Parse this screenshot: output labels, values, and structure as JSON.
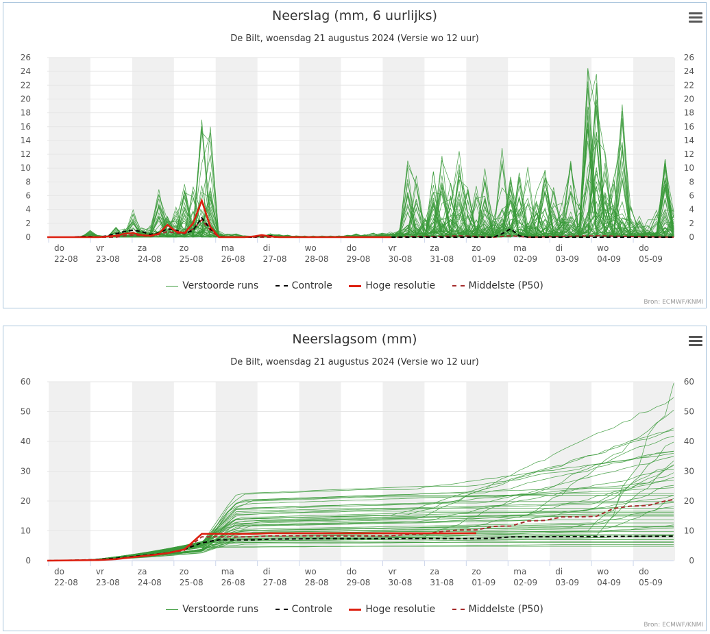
{
  "colors": {
    "ensemble": "#3a9a3a",
    "control": "#000000",
    "high_res": "#dd1f0f",
    "median": "#a52a2a",
    "band": "#f0f0f0",
    "grid": "#e6e6e6"
  },
  "legend": [
    {
      "label": "Verstoorde runs",
      "style": "ensemble"
    },
    {
      "label": "Controle",
      "style": "control"
    },
    {
      "label": "Hoge resolutie",
      "style": "high_res"
    },
    {
      "label": "Middelste (P50)",
      "style": "median"
    }
  ],
  "source": "Bron: ECMWF/KNMI",
  "chart_data": [
    {
      "type": "line",
      "title": "Neerslag (mm, 6 uurlijks)",
      "subtitle": "De Bilt, woensdag 21 augustus 2024 (Versie wo 12 uur)",
      "x_day_labels": [
        [
          "do",
          "22-08"
        ],
        [
          "vr",
          "23-08"
        ],
        [
          "za",
          "24-08"
        ],
        [
          "zo",
          "25-08"
        ],
        [
          "ma",
          "26-08"
        ],
        [
          "di",
          "27-08"
        ],
        [
          "wo",
          "28-08"
        ],
        [
          "do",
          "29-08"
        ],
        [
          "vr",
          "30-08"
        ],
        [
          "za",
          "31-08"
        ],
        [
          "zo",
          "01-09"
        ],
        [
          "ma",
          "02-09"
        ],
        [
          "di",
          "03-09"
        ],
        [
          "wo",
          "04-09"
        ],
        [
          "do",
          "05-09"
        ]
      ],
      "ylim": [
        0,
        26
      ],
      "yticks": [
        0,
        2,
        4,
        6,
        8,
        10,
        12,
        14,
        16,
        18,
        20,
        22,
        24,
        26
      ],
      "grid": true,
      "ensemble": {
        "name": "Verstoorde runs",
        "members": 50,
        "peak_envelope": [
          [
            0.0,
            0
          ],
          [
            0.25,
            0
          ],
          [
            0.5,
            0
          ],
          [
            0.75,
            0
          ],
          [
            1.0,
            0.2
          ],
          [
            1.25,
            1.0
          ],
          [
            1.5,
            0.3
          ],
          [
            1.75,
            0.2
          ],
          [
            2.0,
            1.5
          ],
          [
            2.25,
            1.2
          ],
          [
            2.5,
            4.0
          ],
          [
            2.75,
            1.5
          ],
          [
            3.0,
            2.0
          ],
          [
            3.25,
            7.0
          ],
          [
            3.5,
            3.0
          ],
          [
            3.75,
            4.5
          ],
          [
            4.0,
            8.0
          ],
          [
            4.25,
            7.5
          ],
          [
            4.5,
            17.0
          ],
          [
            4.75,
            16.0
          ],
          [
            5.0,
            1.0
          ],
          [
            5.25,
            0.5
          ],
          [
            5.5,
            0.5
          ],
          [
            5.75,
            0.2
          ],
          [
            6.0,
            0.2
          ],
          [
            6.25,
            0.3
          ],
          [
            6.5,
            0.5
          ],
          [
            6.75,
            0.4
          ],
          [
            7.0,
            0.3
          ],
          [
            7.25,
            0.2
          ],
          [
            7.5,
            0.2
          ],
          [
            7.75,
            0.2
          ],
          [
            8.0,
            0.2
          ],
          [
            8.25,
            0.2
          ],
          [
            8.5,
            0.2
          ],
          [
            8.75,
            0.3
          ],
          [
            9.0,
            0.5
          ],
          [
            9.25,
            0.4
          ],
          [
            9.5,
            0.6
          ],
          [
            9.75,
            0.8
          ],
          [
            10.0,
            0.8
          ],
          [
            10.25,
            1.0
          ],
          [
            10.5,
            12.2
          ],
          [
            10.75,
            9.0
          ],
          [
            11.0,
            3.0
          ],
          [
            11.25,
            9.5
          ],
          [
            11.5,
            12.5
          ],
          [
            11.75,
            8.0
          ],
          [
            12.0,
            12.5
          ],
          [
            12.25,
            7.5
          ],
          [
            12.5,
            9.5
          ],
          [
            12.75,
            10.5
          ],
          [
            13.0,
            3.0
          ],
          [
            13.25,
            13.2
          ],
          [
            13.5,
            9.0
          ],
          [
            13.75,
            9.5
          ],
          [
            14.0,
            10.2
          ],
          [
            14.25,
            6.5
          ],
          [
            14.5,
            10.5
          ],
          [
            14.75,
            7.5
          ],
          [
            15.0,
            6.5
          ],
          [
            15.25,
            12.2
          ],
          [
            15.5,
            5.0
          ],
          [
            15.75,
            24.5
          ],
          [
            16.0,
            23.6
          ],
          [
            16.25,
            12.8
          ],
          [
            16.5,
            8.5
          ],
          [
            16.75,
            19.2
          ],
          [
            17.0,
            6.0
          ],
          [
            17.25,
            4.0
          ],
          [
            17.5,
            3.5
          ],
          [
            17.75,
            4.5
          ],
          [
            18.0,
            11.4
          ],
          [
            18.25,
            4.0
          ]
        ]
      },
      "control": {
        "name": "Controle",
        "points": [
          [
            0,
            0
          ],
          [
            0.75,
            0
          ],
          [
            1.0,
            0.1
          ],
          [
            1.25,
            0.1
          ],
          [
            1.5,
            0.0
          ],
          [
            1.75,
            0.2
          ],
          [
            2.0,
            0.5
          ],
          [
            2.25,
            0.8
          ],
          [
            2.5,
            1.0
          ],
          [
            2.75,
            0.8
          ],
          [
            3.0,
            0.4
          ],
          [
            3.25,
            0.6
          ],
          [
            3.5,
            1.2
          ],
          [
            3.75,
            1.0
          ],
          [
            4.0,
            0.5
          ],
          [
            4.25,
            1.0
          ],
          [
            4.5,
            2.8
          ],
          [
            4.75,
            1.2
          ],
          [
            5.0,
            0.1
          ],
          [
            5.25,
            0.0
          ],
          [
            6.0,
            0.0
          ],
          [
            6.25,
            0.2
          ],
          [
            6.5,
            0.2
          ],
          [
            6.75,
            0.0
          ],
          [
            13.0,
            0.0
          ],
          [
            13.25,
            0.5
          ],
          [
            13.5,
            1.2
          ],
          [
            13.75,
            0.2
          ],
          [
            14.0,
            0.0
          ],
          [
            18.25,
            0.0
          ]
        ]
      },
      "high_res": {
        "name": "Hoge resolutie",
        "points": [
          [
            0,
            0
          ],
          [
            1.5,
            0
          ],
          [
            1.75,
            0.1
          ],
          [
            2.0,
            0.2
          ],
          [
            2.25,
            0.5
          ],
          [
            2.5,
            0.6
          ],
          [
            2.75,
            0.3
          ],
          [
            3.0,
            0.2
          ],
          [
            3.25,
            0.5
          ],
          [
            3.5,
            1.8
          ],
          [
            3.75,
            0.8
          ],
          [
            4.0,
            0.6
          ],
          [
            4.25,
            2.0
          ],
          [
            4.5,
            5.3
          ],
          [
            4.75,
            1.5
          ],
          [
            5.0,
            0.0
          ],
          [
            5.75,
            0.0
          ],
          [
            6.0,
            0.1
          ],
          [
            6.25,
            0.3
          ],
          [
            6.5,
            0.1
          ],
          [
            6.75,
            0.0
          ],
          [
            10.0,
            0.0
          ]
        ]
      },
      "median": {
        "name": "Middelste (P50)",
        "points": [
          [
            0,
            0
          ],
          [
            2.0,
            0
          ],
          [
            2.25,
            0.2
          ],
          [
            2.5,
            0.3
          ],
          [
            2.75,
            0.2
          ],
          [
            3.0,
            0.1
          ],
          [
            3.25,
            0.4
          ],
          [
            3.5,
            0.8
          ],
          [
            3.75,
            0.6
          ],
          [
            4.0,
            0.5
          ],
          [
            4.25,
            1.2
          ],
          [
            4.5,
            2.5
          ],
          [
            4.75,
            1.0
          ],
          [
            5.0,
            0.0
          ],
          [
            10.25,
            0.0
          ],
          [
            10.5,
            0.1
          ],
          [
            11.5,
            0.1
          ],
          [
            12.0,
            0.2
          ],
          [
            13.0,
            0.0
          ],
          [
            13.5,
            0.2
          ],
          [
            14.0,
            0.0
          ],
          [
            15.0,
            0.1
          ],
          [
            16.0,
            0.2
          ],
          [
            17.0,
            0.1
          ],
          [
            18.25,
            0.0
          ]
        ]
      }
    },
    {
      "type": "line",
      "title": "Neerslagsom (mm)",
      "subtitle": "De Bilt, woensdag 21 augustus 2024 (Versie wo 12 uur)",
      "x_day_labels": [
        [
          "do",
          "22-08"
        ],
        [
          "vr",
          "23-08"
        ],
        [
          "za",
          "24-08"
        ],
        [
          "zo",
          "25-08"
        ],
        [
          "ma",
          "26-08"
        ],
        [
          "di",
          "27-08"
        ],
        [
          "wo",
          "28-08"
        ],
        [
          "do",
          "29-08"
        ],
        [
          "vr",
          "30-08"
        ],
        [
          "za",
          "31-08"
        ],
        [
          "zo",
          "01-09"
        ],
        [
          "ma",
          "02-09"
        ],
        [
          "di",
          "03-09"
        ],
        [
          "wo",
          "04-09"
        ],
        [
          "do",
          "05-09"
        ]
      ],
      "ylim": [
        0,
        60
      ],
      "yticks": [
        0,
        10,
        20,
        30,
        40,
        50,
        60
      ],
      "grid": true,
      "ensemble": {
        "name": "Verstoorde runs",
        "members": 50,
        "final_values": [
          59.5,
          55.0,
          50.5,
          45.0,
          44.0,
          43.0,
          41.5,
          37.5,
          37.0,
          36.0,
          35.0,
          33.5,
          33.0,
          32.0,
          31.0,
          29.5,
          28.0,
          27.0,
          26.0,
          24.5,
          22.0,
          21.0,
          20.0,
          19.5,
          19.0,
          18.5,
          17.5,
          16.5,
          15.5,
          14.5,
          13.5,
          13.0,
          12.5,
          12.0,
          11.5,
          11.0,
          10.5,
          10.0,
          9.5,
          9.0,
          8.5,
          8.0,
          7.5,
          7.0,
          6.5,
          6.0,
          5.5,
          5.0,
          4.5,
          4.0
        ]
      },
      "control": {
        "name": "Controle",
        "points": [
          [
            0,
            0
          ],
          [
            1.0,
            0.2
          ],
          [
            1.5,
            0.4
          ],
          [
            2.0,
            0.8
          ],
          [
            2.5,
            1.4
          ],
          [
            3.0,
            2.0
          ],
          [
            3.5,
            2.6
          ],
          [
            4.0,
            3.8
          ],
          [
            4.5,
            6.0
          ],
          [
            5.0,
            7.0
          ],
          [
            6.0,
            7.0
          ],
          [
            6.5,
            7.2
          ],
          [
            8.0,
            7.4
          ],
          [
            12.0,
            7.4
          ],
          [
            13.0,
            7.5
          ],
          [
            13.5,
            8.0
          ],
          [
            14.0,
            8.0
          ],
          [
            18.25,
            8.2
          ]
        ]
      },
      "high_res": {
        "name": "Hoge resolutie",
        "points": [
          [
            0,
            0
          ],
          [
            1.5,
            0.2
          ],
          [
            2.0,
            0.5
          ],
          [
            2.5,
            1.2
          ],
          [
            3.0,
            1.8
          ],
          [
            3.5,
            2.5
          ],
          [
            4.0,
            3.8
          ],
          [
            4.5,
            9.0
          ],
          [
            5.0,
            9.0
          ],
          [
            6.0,
            9.0
          ],
          [
            6.5,
            9.2
          ],
          [
            10.0,
            9.2
          ],
          [
            12.5,
            9.2
          ]
        ]
      },
      "median": {
        "name": "Middelste (P50)",
        "points": [
          [
            0,
            0
          ],
          [
            1.5,
            0.2
          ],
          [
            2.0,
            0.5
          ],
          [
            2.5,
            1.2
          ],
          [
            3.0,
            1.8
          ],
          [
            3.5,
            2.5
          ],
          [
            4.0,
            3.5
          ],
          [
            4.5,
            8.0
          ],
          [
            5.0,
            8.0
          ],
          [
            6.0,
            8.0
          ],
          [
            6.5,
            8.3
          ],
          [
            10.0,
            8.3
          ],
          [
            10.5,
            8.8
          ],
          [
            11.0,
            9.0
          ],
          [
            11.5,
            9.8
          ],
          [
            12.0,
            10.3
          ],
          [
            12.5,
            10.3
          ],
          [
            13.0,
            11.5
          ],
          [
            13.5,
            11.6
          ],
          [
            14.0,
            13.3
          ],
          [
            14.5,
            13.5
          ],
          [
            15.0,
            14.7
          ],
          [
            15.5,
            14.7
          ],
          [
            16.0,
            14.9
          ],
          [
            16.5,
            17.5
          ],
          [
            17.0,
            18.3
          ],
          [
            17.5,
            18.5
          ],
          [
            18.0,
            20.0
          ],
          [
            18.25,
            20.5
          ]
        ]
      }
    }
  ]
}
